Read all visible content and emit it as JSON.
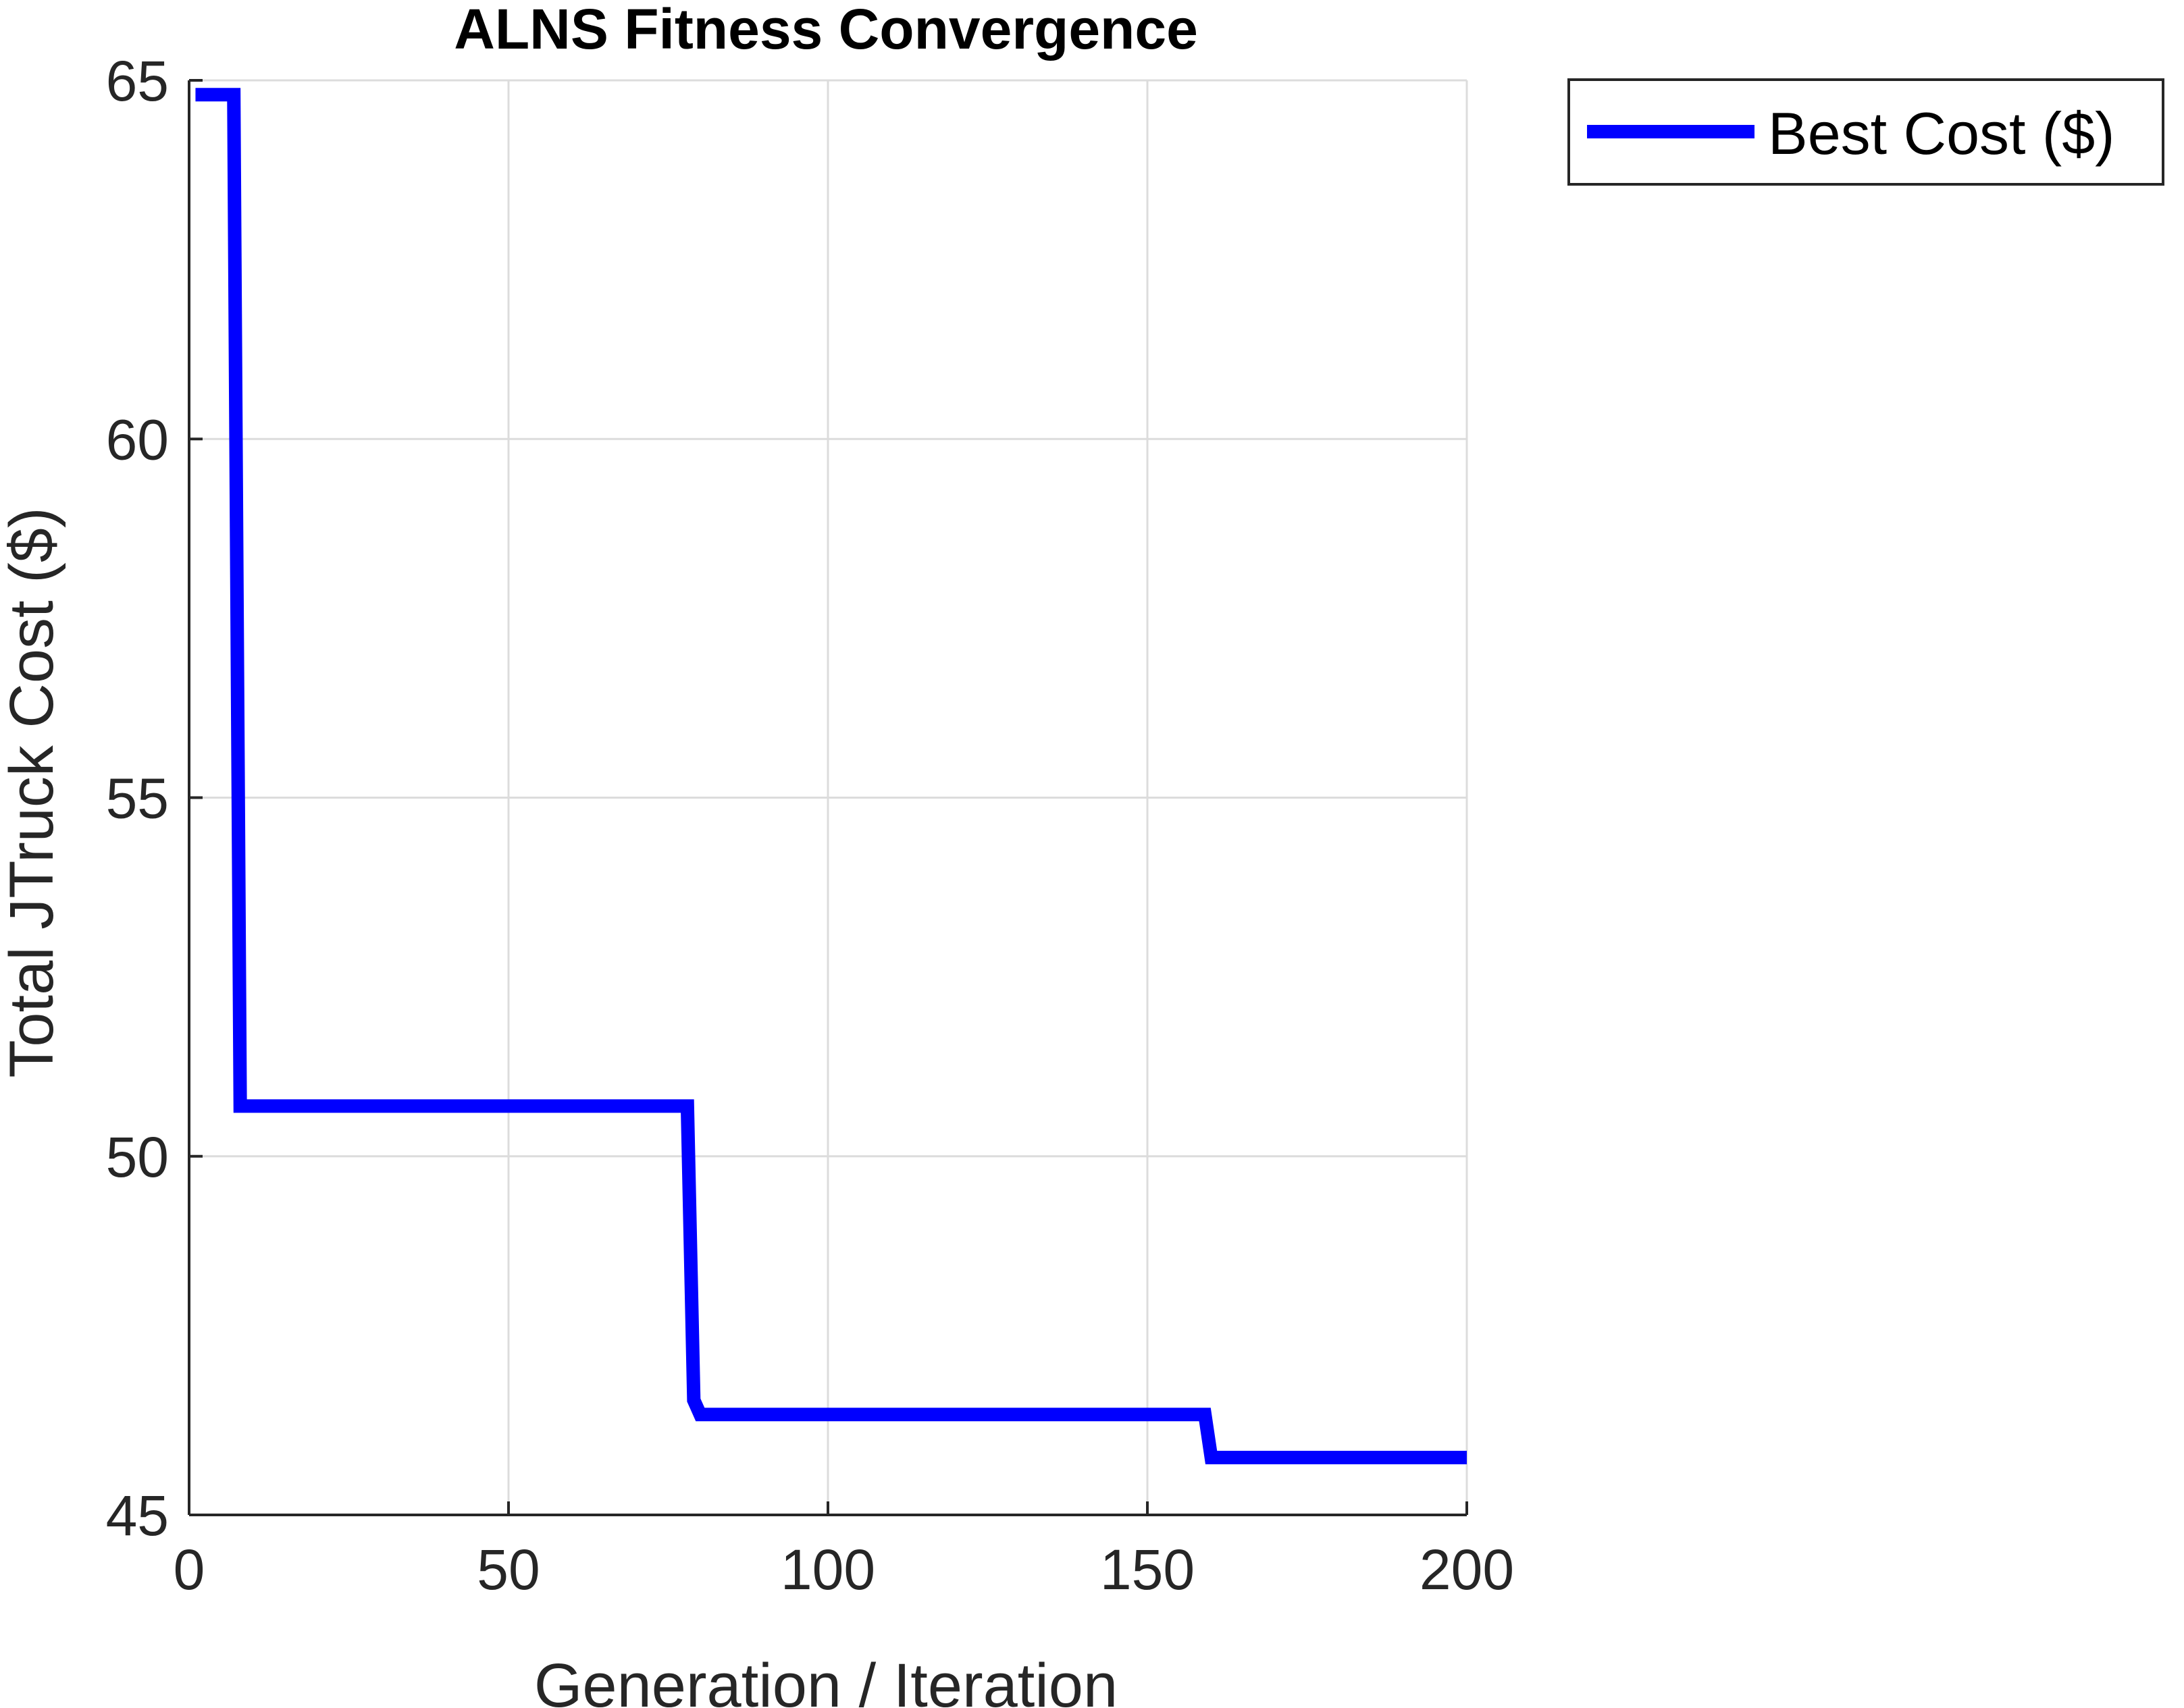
{
  "chart_data": {
    "type": "line",
    "title": "ALNS Fitness Convergence",
    "xlabel": "Generation / Iteration",
    "ylabel": "Total JTruck Cost ($)",
    "xlim": [
      0,
      200
    ],
    "ylim": [
      45,
      65
    ],
    "xticks": [
      "0",
      "50",
      "100",
      "150",
      "200"
    ],
    "yticks": [
      "45",
      "50",
      "55",
      "60",
      "65"
    ],
    "grid": true,
    "legend_position": "outside-top-right",
    "series": [
      {
        "name": "Best Cost ($)",
        "color": "#0000ff",
        "x": [
          1,
          7,
          8,
          78,
          79,
          80,
          159,
          160,
          200
        ],
        "y": [
          64.8,
          64.8,
          50.7,
          50.7,
          46.6,
          46.4,
          46.4,
          45.8,
          45.8
        ]
      }
    ]
  }
}
